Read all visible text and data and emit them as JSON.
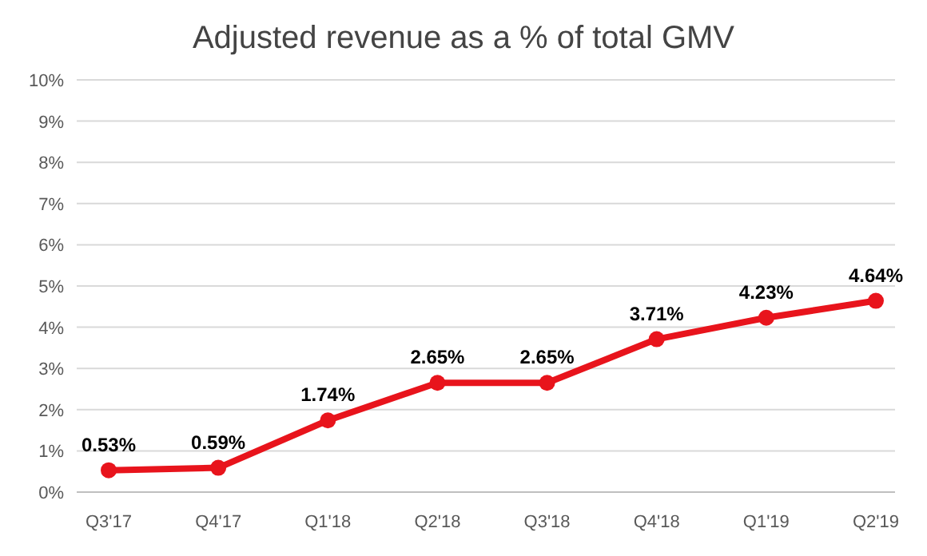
{
  "chart_data": {
    "type": "line",
    "title": "Adjusted revenue as a % of total GMV",
    "categories": [
      "Q3'17",
      "Q4'17",
      "Q1'18",
      "Q2'18",
      "Q3'18",
      "Q4'18",
      "Q1'19",
      "Q2'19"
    ],
    "values": [
      0.53,
      0.59,
      1.74,
      2.65,
      2.65,
      3.71,
      4.23,
      4.64
    ],
    "value_labels": [
      "0.53%",
      "0.59%",
      "1.74%",
      "2.65%",
      "2.65%",
      "3.71%",
      "4.23%",
      "4.64%"
    ],
    "color": "#e8141c",
    "marker": "circle",
    "line_style": "solid",
    "grid": "y",
    "ylim": [
      0,
      10
    ],
    "yticks": [
      {
        "value": 0,
        "label": "0%"
      },
      {
        "value": 1,
        "label": "1%"
      },
      {
        "value": 2,
        "label": "2%"
      },
      {
        "value": 3,
        "label": "3%"
      },
      {
        "value": 4,
        "label": "4%"
      },
      {
        "value": 5,
        "label": "5%"
      },
      {
        "value": 6,
        "label": "6%"
      },
      {
        "value": 7,
        "label": "7%"
      },
      {
        "value": 8,
        "label": "8%"
      },
      {
        "value": 9,
        "label": "9%"
      },
      {
        "value": 10,
        "label": "10%"
      }
    ]
  }
}
